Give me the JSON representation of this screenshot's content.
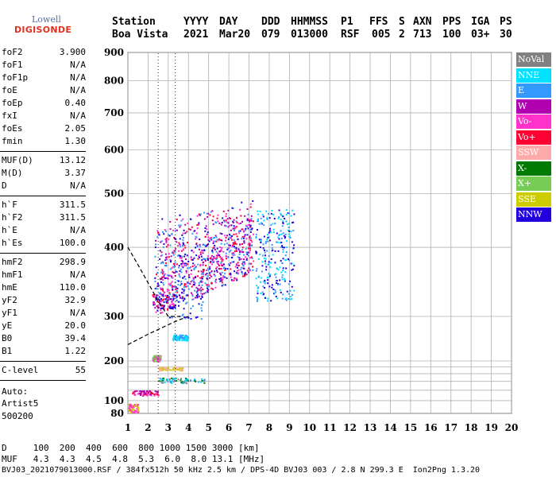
{
  "logo": {
    "top": "Lowell",
    "bottom": "DIGISONDE"
  },
  "header": {
    "labels": [
      "Station",
      "YYYY",
      "DAY",
      "DDD",
      "HHMMSS",
      "P1",
      "FFS",
      "S",
      "AXN",
      "PPS",
      "IGA",
      "PS"
    ],
    "values": [
      "Boa Vista",
      "2021",
      "Mar20",
      "079",
      "013000",
      "RSF",
      "005",
      "2",
      "713",
      "100",
      "03+",
      "30"
    ]
  },
  "params": [
    {
      "k": "foF2",
      "v": "3.900"
    },
    {
      "k": "foF1",
      "v": "N/A"
    },
    {
      "k": "foF1p",
      "v": "N/A"
    },
    {
      "k": "foE",
      "v": "N/A"
    },
    {
      "k": "foEp",
      "v": "0.40"
    },
    {
      "k": "fxI",
      "v": "N/A"
    },
    {
      "k": "foEs",
      "v": "2.05"
    },
    {
      "k": "fmin",
      "v": "1.30"
    },
    {
      "k": "MUF(D)",
      "v": "13.12"
    },
    {
      "k": "M(D)",
      "v": "3.37"
    },
    {
      "k": "D",
      "v": "N/A"
    },
    {
      "k": "h`F",
      "v": "311.5"
    },
    {
      "k": "h`F2",
      "v": "311.5"
    },
    {
      "k": "h`E",
      "v": "N/A"
    },
    {
      "k": "h`Es",
      "v": "100.0"
    },
    {
      "k": "hmF2",
      "v": "298.9"
    },
    {
      "k": "hmF1",
      "v": "N/A"
    },
    {
      "k": "hmE",
      "v": "110.0"
    },
    {
      "k": "yF2",
      "v": "32.9"
    },
    {
      "k": "yF1",
      "v": "N/A"
    },
    {
      "k": "yE",
      "v": "20.0"
    },
    {
      "k": "B0",
      "v": "39.4"
    },
    {
      "k": "B1",
      "v": "1.22"
    },
    {
      "k": "C-level",
      "v": "55"
    }
  ],
  "auto": [
    "Auto:",
    "Artist5",
    "500200"
  ],
  "legend": [
    {
      "label": "NoVal",
      "color": "#808080"
    },
    {
      "label": "NNE",
      "color": "#00e0ff"
    },
    {
      "label": "E",
      "color": "#3399ff"
    },
    {
      "label": "W",
      "color": "#b000b0"
    },
    {
      "label": "Vo-",
      "color": "#ff33cc"
    },
    {
      "label": "Vo+",
      "color": "#ff0033"
    },
    {
      "label": "SSW",
      "color": "#ffaaaa"
    },
    {
      "label": "X-",
      "color": "#007a00"
    },
    {
      "label": "X+",
      "color": "#77cc55"
    },
    {
      "label": "SSE",
      "color": "#cccc00"
    },
    {
      "label": "NNW",
      "color": "#2200dd"
    }
  ],
  "footer": {
    "d_row": "D     100  200  400  600  800 1000 1500 3000 [km]",
    "muf_row": "MUF   4.3  4.3  4.5  4.8  5.3  6.0  8.0 13.1 [MHz]",
    "source": "BVJ03_2021079013000.RSF / 384fx512h 50 kHz 2.5 km / DPS-4D BVJ03 003 / 2.8 N 299.3 E  Ion2Png 1.3.20"
  },
  "chart_data": {
    "type": "scatter",
    "xlabel": "",
    "ylabel": "",
    "xlim": [
      1,
      20
    ],
    "ylim": [
      80,
      900
    ],
    "xticks": [
      "1",
      "2",
      "3",
      "4",
      "5",
      "6",
      "7",
      "8",
      "9",
      "10",
      "11",
      "12",
      "13",
      "14",
      "15",
      "16",
      "17",
      "18",
      "19",
      "20"
    ],
    "yticks": [
      "80",
      "100",
      "200",
      "300",
      "400",
      "500",
      "600",
      "700",
      "800",
      "900"
    ],
    "grid": true,
    "legend_position": "right",
    "clusters": [
      {
        "x": [
          2.3,
          7.2
        ],
        "y": [
          300,
          480
        ],
        "colors": [
          "#2200dd",
          "#b000b0",
          "#ff33cc",
          "#ff0033",
          "#3399ff"
        ]
      },
      {
        "x": [
          7.3,
          9.2
        ],
        "y": [
          320,
          470
        ],
        "colors": [
          "#00e0ff",
          "#3399ff",
          "#2200dd"
        ]
      },
      {
        "x": [
          3.0,
          4.7
        ],
        "y": [
          295,
          350
        ],
        "colors": [
          "#2200dd",
          "#3399ff"
        ]
      },
      {
        "x": [
          2.2,
          3.3
        ],
        "y": [
          310,
          330
        ],
        "colors": [
          "#ff33cc",
          "#ff0033",
          "#2200dd"
        ]
      },
      {
        "x": [
          3.2,
          4.0
        ],
        "y": [
          242,
          255
        ],
        "colors": [
          "#3399ff",
          "#00e0ff"
        ]
      },
      {
        "x": [
          2.2,
          2.6
        ],
        "y": [
          200,
          212
        ],
        "colors": [
          "#77cc55",
          "#ff33cc"
        ]
      },
      {
        "x": [
          2.5,
          3.7
        ],
        "y": [
          170,
          182
        ],
        "colors": [
          "#cccc00",
          "#ffaaaa"
        ]
      },
      {
        "x": [
          2.5,
          4.8
        ],
        "y": [
          137,
          150
        ],
        "colors": [
          "#00e0ff",
          "#007a00",
          "#3399ff",
          "#808080"
        ]
      },
      {
        "x": [
          1.2,
          2.5
        ],
        "y": [
          110,
          120
        ],
        "colors": [
          "#ff33cc",
          "#ff0033",
          "#b000b0"
        ]
      },
      {
        "x": [
          1.0,
          1.5
        ],
        "y": [
          82,
          95
        ],
        "colors": [
          "#cccc00",
          "#ff33cc"
        ]
      }
    ],
    "profile_upper": {
      "x": [
        1.0,
        1.5,
        2.0,
        2.5,
        3.0,
        3.6
      ],
      "y": [
        400,
        372,
        345,
        320,
        300,
        300
      ]
    },
    "profile_lower": {
      "x": [
        1.0,
        2.0,
        3.0,
        3.5,
        4.0
      ],
      "y": [
        232,
        255,
        278,
        290,
        300
      ]
    }
  }
}
